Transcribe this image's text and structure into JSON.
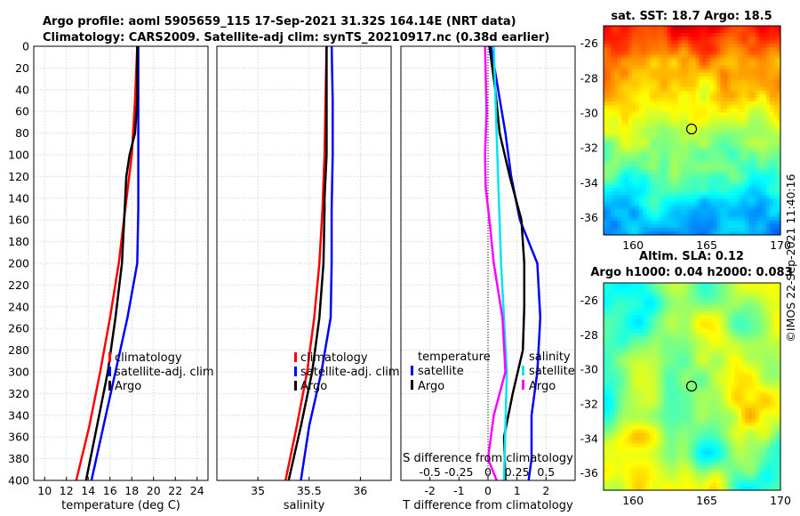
{
  "header": {
    "title_line1": "Argo profile: aoml 5905659_115 17-Sep-2021 31.32S 164.14E (NRT data)",
    "title_line2": "Climatology: CARS2009. Satellite-adj clim: synTS_20210917.nc (0.38d earlier)"
  },
  "credit": "©IMOS 22-Sep-2021 11:40:16",
  "colors": {
    "red": "#ff0000",
    "blue": "#0000ff",
    "black": "#000000",
    "cyan": "#00e5ee",
    "magenta": "#ff00ff"
  },
  "chart_data": [
    {
      "type": "line",
      "name": "temperature",
      "xlabel": "temperature (deg C)",
      "ylabel": "",
      "xlim": [
        9,
        25
      ],
      "ylim": [
        0,
        400
      ],
      "xticks": [
        10,
        12,
        14,
        16,
        18,
        20,
        22,
        24
      ],
      "yticks": [
        0,
        20,
        40,
        60,
        80,
        100,
        120,
        140,
        160,
        180,
        200,
        220,
        240,
        260,
        280,
        300,
        320,
        340,
        360,
        380,
        400
      ],
      "legend": {
        "position": "lower-right",
        "entries": [
          "climatology",
          "satellite-adj. clim",
          "Argo"
        ]
      },
      "series": [
        {
          "name": "climatology",
          "color": "#ff0000",
          "depth": [
            0,
            50,
            100,
            150,
            200,
            250,
            300,
            350,
            400
          ],
          "values": [
            18.5,
            18.3,
            18.0,
            17.4,
            16.8,
            16.0,
            15.1,
            14.1,
            12.9
          ]
        },
        {
          "name": "satellite-adj. clim",
          "color": "#0000ff",
          "depth": [
            0,
            50,
            100,
            150,
            200,
            250,
            300,
            350,
            400
          ],
          "values": [
            18.6,
            18.6,
            18.6,
            18.6,
            18.5,
            17.6,
            16.5,
            15.4,
            14.3
          ]
        },
        {
          "name": "Argo",
          "color": "#000000",
          "depth": [
            0,
            50,
            80,
            100,
            120,
            140,
            160,
            180,
            200,
            250,
            300,
            350,
            400
          ],
          "values": [
            18.5,
            18.5,
            18.3,
            17.8,
            17.5,
            17.4,
            17.3,
            17.2,
            17.1,
            16.5,
            15.8,
            14.8,
            13.8
          ]
        }
      ]
    },
    {
      "type": "line",
      "name": "salinity",
      "xlabel": "salinity",
      "ylabel": "",
      "xlim": [
        34.6,
        36.3
      ],
      "ylim": [
        0,
        400
      ],
      "xticks": [
        35,
        35.5,
        36
      ],
      "legend": {
        "position": "lower-right",
        "entries": [
          "climatology",
          "satellite-adj. clim",
          "Argo"
        ]
      },
      "series": [
        {
          "name": "climatology",
          "color": "#ff0000",
          "depth": [
            0,
            50,
            100,
            150,
            200,
            250,
            300,
            350,
            400
          ],
          "values": [
            35.67,
            35.66,
            35.65,
            35.63,
            35.6,
            35.55,
            35.48,
            35.38,
            35.27
          ]
        },
        {
          "name": "satellite-adj. clim",
          "color": "#0000ff",
          "depth": [
            0,
            50,
            100,
            150,
            200,
            250,
            300,
            350,
            400
          ],
          "values": [
            35.72,
            35.73,
            35.73,
            35.72,
            35.72,
            35.71,
            35.62,
            35.5,
            35.42
          ]
        },
        {
          "name": "Argo",
          "color": "#000000",
          "depth": [
            0,
            50,
            100,
            140,
            150,
            200,
            250,
            300,
            350,
            400
          ],
          "values": [
            35.67,
            35.67,
            35.67,
            35.65,
            35.65,
            35.64,
            35.6,
            35.53,
            35.42,
            35.3
          ]
        }
      ]
    },
    {
      "type": "line",
      "name": "difference",
      "xlabel": "T difference from climatology",
      "ylabel": "",
      "top_label": "S difference from climatology",
      "xlim": [
        -3,
        3
      ],
      "ylim": [
        0,
        400
      ],
      "xticks": [
        -2,
        -1,
        0,
        1,
        2
      ],
      "top_ticks": [
        {
          "label": "-0.5",
          "x": -2
        },
        {
          "label": "-0.25",
          "x": -1
        },
        {
          "label": "0",
          "x": 0
        },
        {
          "label": "0.25",
          "x": 1
        },
        {
          "label": "0.5",
          "x": 2
        }
      ],
      "legend": {
        "position": "lower",
        "headings": [
          "temperature",
          "salinity"
        ],
        "entries": [
          "satellite",
          "Argo",
          "satellite",
          "Argo"
        ]
      },
      "series": [
        {
          "name": "temperature satellite",
          "color": "#0000ff",
          "depth": [
            0,
            40,
            80,
            120,
            160,
            200,
            250,
            300,
            340,
            380,
            400
          ],
          "values": [
            0.1,
            0.35,
            0.6,
            0.8,
            1.1,
            1.7,
            1.8,
            1.7,
            1.5,
            1.5,
            1.4
          ]
        },
        {
          "name": "temperature Argo",
          "color": "#000000",
          "depth": [
            0,
            40,
            80,
            120,
            160,
            200,
            240,
            280,
            320,
            360,
            400
          ],
          "values": [
            0.05,
            0.25,
            0.4,
            0.75,
            1.15,
            1.25,
            1.25,
            1.2,
            0.85,
            0.55,
            0.6
          ]
        },
        {
          "name": "salinity satellite",
          "color": "#00e5ee",
          "depth": [
            0,
            100,
            200,
            300,
            400
          ],
          "values": [
            0.2,
            0.32,
            0.45,
            0.65,
            0.55
          ]
        },
        {
          "name": "salinity Argo",
          "color": "#ff00ff",
          "depth": [
            0,
            60,
            100,
            130,
            160,
            200,
            250,
            300,
            340,
            380,
            400
          ],
          "values": [
            -0.1,
            -0.05,
            -0.1,
            -0.08,
            0.05,
            0.2,
            0.5,
            0.6,
            0.2,
            0.0,
            0.3
          ]
        }
      ]
    },
    {
      "type": "heatmap",
      "name": "sst-map",
      "title": "sat. SST: 18.7 Argo: 18.5",
      "xlim": [
        158,
        170
      ],
      "ylim": [
        -37,
        -25
      ],
      "xticks": [
        160,
        165,
        170
      ],
      "yticks": [
        -26,
        -28,
        -30,
        -32,
        -34,
        -36
      ],
      "marker": {
        "lon": 164.14,
        "lat": -31.32
      }
    },
    {
      "type": "heatmap",
      "name": "sla-map",
      "title": "Altim. SLA: 0.12",
      "subtitle": "Argo h1000: 0.04 h2000: 0.083",
      "xlim": [
        158,
        170
      ],
      "ylim": [
        -37,
        -25
      ],
      "xticks": [
        160,
        165,
        170
      ],
      "yticks": [
        -26,
        -28,
        -30,
        -32,
        -34,
        -36
      ],
      "marker": {
        "lon": 164.14,
        "lat": -31.32
      }
    }
  ]
}
